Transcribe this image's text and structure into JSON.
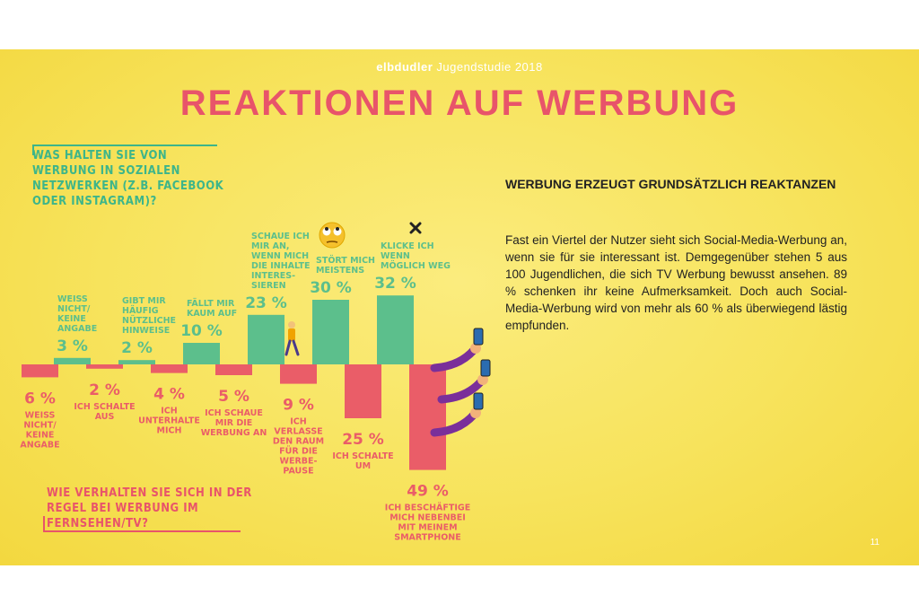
{
  "header": {
    "brand_bold": "elbdudler",
    "brand_rest": " Jugendstudie 2018",
    "title": "REAKTIONEN AUF WERBUNG"
  },
  "questions": {
    "social": "Was halten Sie von Werbung in sozialen Netzwerken (z.B. Facebook oder Instagram)?",
    "tv": "Wie verhalten Sie sich in der Regel bei Werbung im Fernsehen/TV?"
  },
  "colors": {
    "positive": "#5cbf8c",
    "negative": "#ea5d68",
    "title": "#e8546a",
    "question_top": "#3db58a",
    "question_bottom": "#e8546a"
  },
  "chart_data": {
    "type": "bar",
    "series": [
      {
        "name": "Social Media",
        "categories": [
          "WEISS NICHT/ KEINE ANGABE",
          "GIBT MIR HÄUFIG NÜTZLICHE HINWEISE",
          "FÄLLT MIR KAUM AUF",
          "SCHAUE ICH MIR AN, WENN MICH DIE INHALTE INTERES- SIEREN",
          "STÖRT MICH MEISTENS",
          "KLICKE ICH WENN MÖGLICH WEG"
        ],
        "values": [
          3,
          2,
          10,
          23,
          30,
          32
        ],
        "labels": [
          "3 %",
          "2 %",
          "10 %",
          "23 %",
          "30 %",
          "32 %"
        ]
      },
      {
        "name": "TV",
        "categories": [
          "WEISS NICHT/ KEINE ANGABE",
          "ICH SCHALTE AUS",
          "ICH UNTERHALTE MICH",
          "ICH SCHAUE MIR DIE WERBUNG AN",
          "ICH VERLASSE DEN RAUM FÜR DIE WERBE- PAUSE",
          "ICH SCHALTE UM",
          "ICH BESCHÄFTIGE MICH NEBENBEI MIT MEINEM SMARTPHONE"
        ],
        "values": [
          6,
          2,
          4,
          5,
          9,
          25,
          49
        ],
        "labels": [
          "6 %",
          "2 %",
          "4 %",
          "5 %",
          "9 %",
          "25 %",
          "49 %"
        ]
      }
    ],
    "unit": "%"
  },
  "icons": [
    "eye-roll-emoji-icon",
    "close-x-icon",
    "walking-person-icon",
    "smartphone-hand-icon"
  ],
  "text": {
    "heading": "WERBUNG ERZEUGT GRUNDSÄTZLICH REAKTANZEN",
    "paragraph": "Fast ein Viertel der Nutzer sieht sich Social-Media-Werbung an, wenn sie für sie interessant ist. Demgegenüber stehen 5 aus 100 Jugendlichen, die sich TV Werbung bewusst ansehen. 89 % schenken ihr keine Aufmerksamkeit. Doch auch Social-Media-Werbung wird von mehr als 60 % als überwiegend lästig empfunden."
  },
  "page_number": "11"
}
